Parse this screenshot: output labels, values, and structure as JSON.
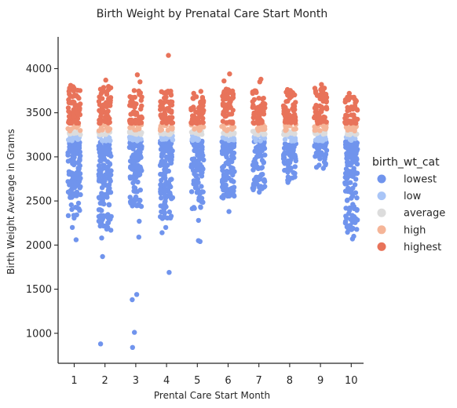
{
  "chart_data": {
    "type": "scatter",
    "title": "Birth Weight by Prenatal Care Start Month",
    "xlabel": "Prental Care Start Month",
    "ylabel": "Birth Weight Average in Grams",
    "categories": [
      "1",
      "2",
      "3",
      "4",
      "5",
      "6",
      "7",
      "8",
      "9",
      "10"
    ],
    "ylim": [
      660,
      4360
    ],
    "yticks": [
      1000,
      1500,
      2000,
      2500,
      3000,
      3500,
      4000
    ],
    "grid": false,
    "legend": {
      "title": "birth_wt_cat",
      "placement": "right",
      "entries": [
        "lowest",
        "low",
        "average",
        "high",
        "highest"
      ]
    },
    "series": [
      {
        "name": "lowest",
        "color": "#7094ed"
      },
      {
        "name": "low",
        "color": "#a9c5f7"
      },
      {
        "name": "average",
        "color": "#dcdcdc"
      },
      {
        "name": "high",
        "color": "#f5b598"
      },
      {
        "name": "highest",
        "color": "#e8735a"
      }
    ],
    "bands": {
      "lowest": [
        2350,
        3180
      ],
      "low": [
        3180,
        3250
      ],
      "average": [
        3250,
        3290
      ],
      "high": [
        3290,
        3380
      ],
      "highest": [
        3380,
        3780
      ]
    },
    "column_ranges": [
      {
        "month": "1",
        "lowest_min": 2300,
        "highest_max": 3800
      },
      {
        "month": "2",
        "lowest_min": 2150,
        "highest_max": 3800
      },
      {
        "month": "3",
        "lowest_min": 2400,
        "highest_max": 3760
      },
      {
        "month": "4",
        "lowest_min": 2300,
        "highest_max": 3760
      },
      {
        "month": "5",
        "lowest_min": 2400,
        "highest_max": 3750
      },
      {
        "month": "6",
        "lowest_min": 2520,
        "highest_max": 3770
      },
      {
        "month": "7",
        "lowest_min": 2620,
        "highest_max": 3760
      },
      {
        "month": "8",
        "lowest_min": 2720,
        "highest_max": 3780
      },
      {
        "month": "9",
        "lowest_min": 2880,
        "highest_max": 3780
      },
      {
        "month": "10",
        "lowest_min": 2140,
        "highest_max": 3680
      }
    ],
    "outliers": [
      {
        "month": "1",
        "value": 2060,
        "category": "lowest"
      },
      {
        "month": "1",
        "value": 2200,
        "category": "lowest"
      },
      {
        "month": "1",
        "value": 3810,
        "category": "highest"
      },
      {
        "month": "2",
        "value": 1870,
        "category": "lowest"
      },
      {
        "month": "2",
        "value": 880,
        "category": "lowest"
      },
      {
        "month": "2",
        "value": 2080,
        "category": "lowest"
      },
      {
        "month": "2",
        "value": 3870,
        "category": "highest"
      },
      {
        "month": "3",
        "value": 840,
        "category": "lowest"
      },
      {
        "month": "3",
        "value": 1010,
        "category": "lowest"
      },
      {
        "month": "3",
        "value": 1380,
        "category": "lowest"
      },
      {
        "month": "3",
        "value": 1440,
        "category": "lowest"
      },
      {
        "month": "3",
        "value": 2090,
        "category": "lowest"
      },
      {
        "month": "3",
        "value": 2270,
        "category": "lowest"
      },
      {
        "month": "3",
        "value": 3850,
        "category": "highest"
      },
      {
        "month": "3",
        "value": 3930,
        "category": "highest"
      },
      {
        "month": "4",
        "value": 1690,
        "category": "lowest"
      },
      {
        "month": "4",
        "value": 2140,
        "category": "lowest"
      },
      {
        "month": "4",
        "value": 2200,
        "category": "lowest"
      },
      {
        "month": "4",
        "value": 4150,
        "category": "highest"
      },
      {
        "month": "5",
        "value": 2040,
        "category": "lowest"
      },
      {
        "month": "5",
        "value": 2050,
        "category": "lowest"
      },
      {
        "month": "5",
        "value": 2280,
        "category": "lowest"
      },
      {
        "month": "6",
        "value": 2380,
        "category": "lowest"
      },
      {
        "month": "6",
        "value": 3860,
        "category": "highest"
      },
      {
        "month": "6",
        "value": 3940,
        "category": "highest"
      },
      {
        "month": "7",
        "value": 2600,
        "category": "lowest"
      },
      {
        "month": "7",
        "value": 3850,
        "category": "highest"
      },
      {
        "month": "7",
        "value": 3880,
        "category": "highest"
      },
      {
        "month": "8",
        "value": 2710,
        "category": "lowest"
      },
      {
        "month": "9",
        "value": 2870,
        "category": "lowest"
      },
      {
        "month": "9",
        "value": 3820,
        "category": "highest"
      },
      {
        "month": "10",
        "value": 2070,
        "category": "lowest"
      },
      {
        "month": "10",
        "value": 2100,
        "category": "lowest"
      },
      {
        "month": "10",
        "value": 3720,
        "category": "highest"
      }
    ]
  }
}
